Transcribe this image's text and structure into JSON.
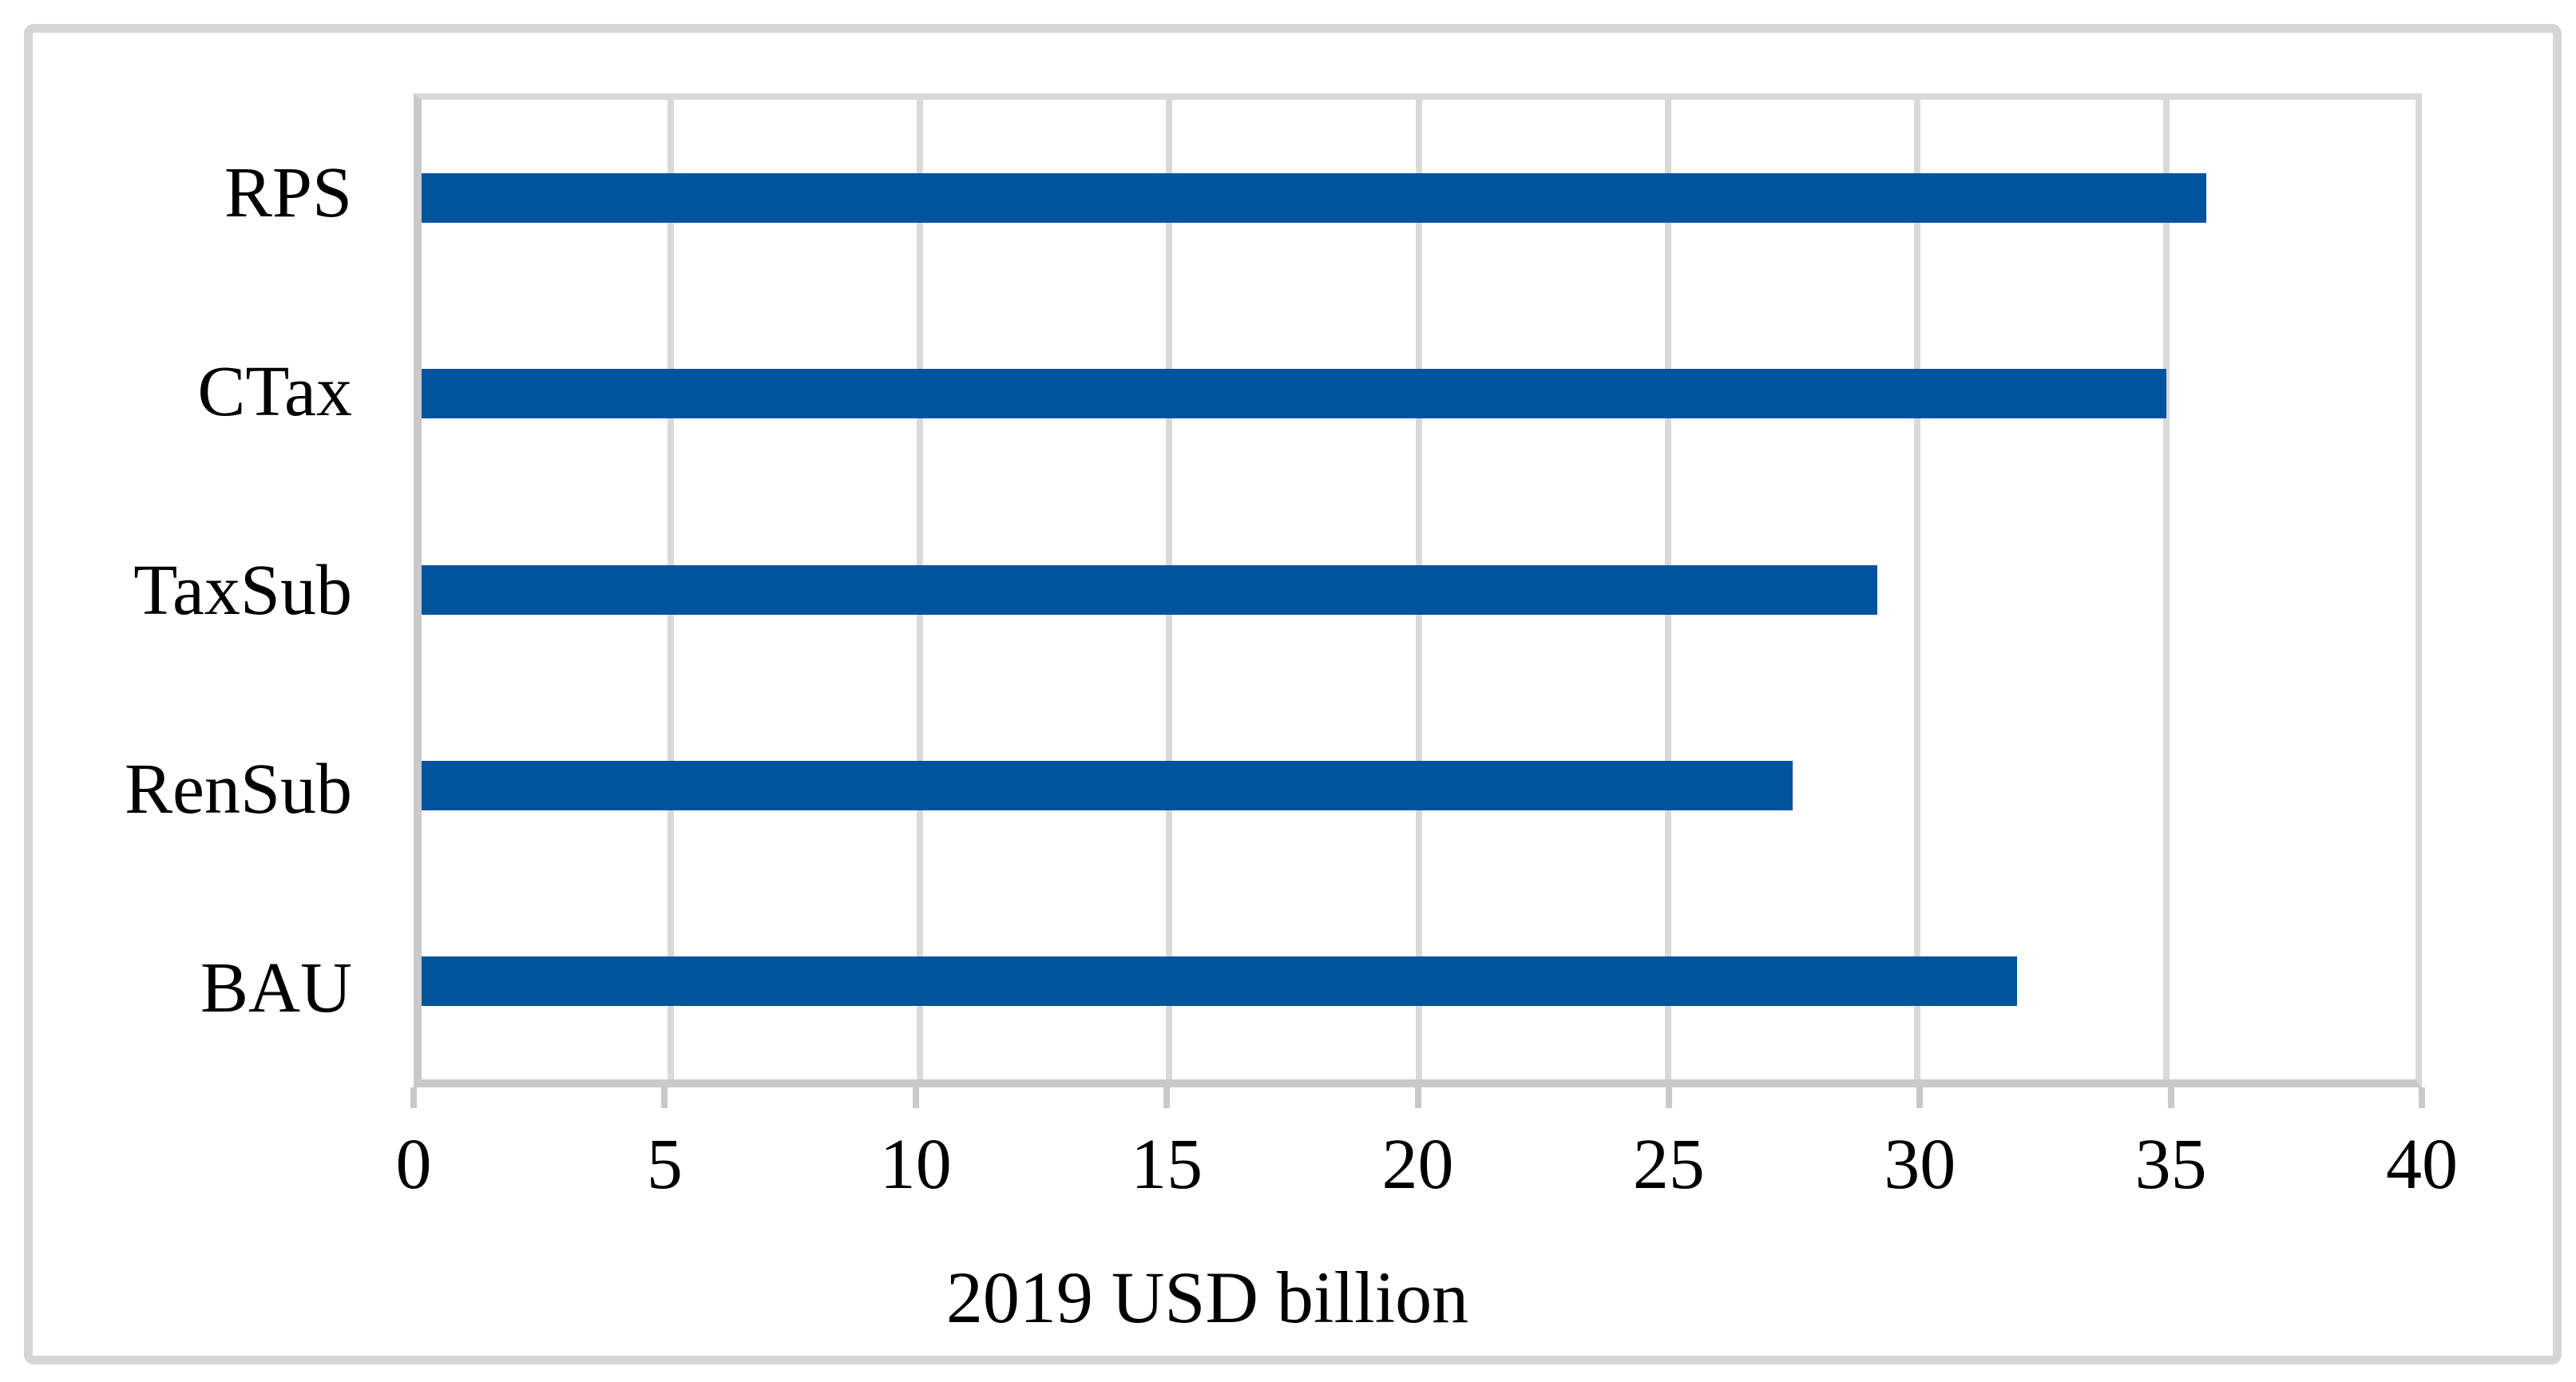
{
  "chart_data": {
    "type": "bar",
    "orientation": "horizontal",
    "title": "",
    "xlabel": "2019 USD billion",
    "ylabel": "",
    "categories": [
      "RPS",
      "CTax",
      "TaxSub",
      "RenSub",
      "BAU"
    ],
    "values": [
      35.8,
      35.0,
      29.2,
      27.5,
      32.0
    ],
    "xlim": [
      0,
      40
    ],
    "xticks": [
      0,
      5,
      10,
      15,
      20,
      25,
      30,
      35,
      40
    ],
    "grid": true,
    "legend_position": "none",
    "bar_color": "#00549d",
    "gridline_color": "#d9d9d9",
    "axis_color": "#c9c9c9",
    "frame_color": "#d6d6d6",
    "text_color": "#000000"
  }
}
